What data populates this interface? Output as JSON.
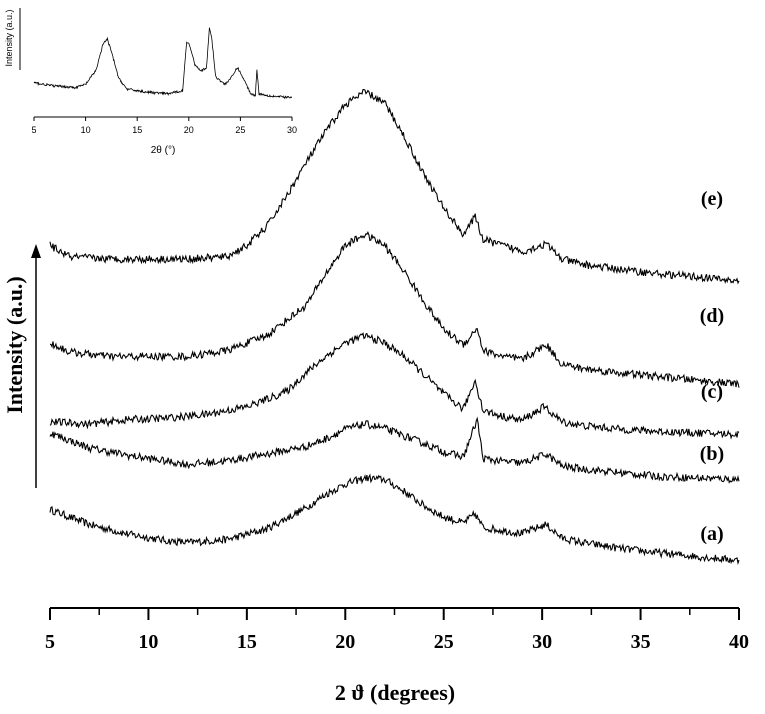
{
  "chart_data": [
    {
      "type": "line",
      "title": "",
      "xlabel": "2 ϑ (degrees)",
      "ylabel": "Intensity (a.u.)",
      "xlim": [
        5,
        40
      ],
      "xticks": [
        5,
        10,
        15,
        20,
        25,
        30,
        35,
        40
      ],
      "y_ticks_shown": false,
      "grid": false,
      "series": [
        {
          "name": "(a)",
          "x": [
            5,
            7,
            9,
            11,
            12,
            14,
            16,
            18,
            19,
            20,
            21,
            22,
            23,
            24,
            25,
            26,
            26.6,
            27,
            28,
            29,
            30.2,
            31,
            32,
            34,
            36,
            38,
            40
          ],
          "y": [
            0.78,
            0.58,
            0.45,
            0.36,
            0.34,
            0.38,
            0.52,
            0.8,
            0.98,
            1.12,
            1.2,
            1.18,
            1.02,
            0.83,
            0.68,
            0.6,
            0.72,
            0.54,
            0.5,
            0.46,
            0.58,
            0.4,
            0.34,
            0.26,
            0.2,
            0.15,
            0.1
          ]
        },
        {
          "name": "(b)",
          "x": [
            5,
            7,
            9,
            11,
            12,
            14,
            16,
            18,
            19,
            20,
            21,
            22,
            23,
            24,
            25,
            26,
            26.7,
            27,
            28,
            29,
            30.2,
            31,
            32,
            34,
            36,
            38,
            40
          ],
          "y": [
            1.8,
            1.6,
            1.5,
            1.42,
            1.38,
            1.43,
            1.52,
            1.62,
            1.72,
            1.85,
            1.92,
            1.86,
            1.76,
            1.66,
            1.55,
            1.48,
            1.98,
            1.46,
            1.42,
            1.4,
            1.52,
            1.36,
            1.32,
            1.27,
            1.22,
            1.2,
            1.18
          ]
        },
        {
          "name": "(c)",
          "x": [
            5,
            7,
            9,
            11,
            13,
            15,
            17,
            18,
            19,
            20,
            21,
            22,
            23,
            24,
            25,
            26,
            26.6,
            27,
            28,
            29,
            30.1,
            31,
            32,
            34,
            36,
            38,
            40
          ],
          "y": [
            1.95,
            1.92,
            1.98,
            2.0,
            2.05,
            2.15,
            2.35,
            2.6,
            2.82,
            3.0,
            3.1,
            3.0,
            2.82,
            2.58,
            2.32,
            2.12,
            2.5,
            2.1,
            2.02,
            1.97,
            2.15,
            1.95,
            1.9,
            1.85,
            1.82,
            1.8,
            1.78
          ]
        },
        {
          "name": "(d)",
          "x": [
            5,
            6,
            8,
            10,
            12,
            14,
            16,
            18,
            19,
            20,
            21,
            22,
            23,
            24,
            25,
            26,
            26.7,
            27,
            28,
            29,
            30.2,
            31,
            32,
            34,
            36,
            38,
            40
          ],
          "y": [
            3.0,
            2.88,
            2.82,
            2.82,
            2.82,
            2.9,
            3.1,
            3.5,
            3.92,
            4.3,
            4.45,
            4.3,
            3.95,
            3.55,
            3.18,
            2.98,
            3.2,
            2.9,
            2.82,
            2.78,
            2.98,
            2.72,
            2.66,
            2.6,
            2.55,
            2.5,
            2.45
          ]
        },
        {
          "name": "(e)",
          "x": [
            5,
            6,
            8,
            10,
            12,
            14,
            15,
            16,
            17,
            18,
            19,
            20,
            21,
            22,
            23,
            24,
            25,
            26,
            26.6,
            27,
            28,
            29,
            30.2,
            31,
            32,
            34,
            36,
            38,
            40
          ],
          "y": [
            4.3,
            4.15,
            4.12,
            4.12,
            4.12,
            4.15,
            4.3,
            4.55,
            4.95,
            5.4,
            5.82,
            6.18,
            6.35,
            6.2,
            5.75,
            5.25,
            4.8,
            4.45,
            4.68,
            4.38,
            4.3,
            4.22,
            4.32,
            4.12,
            4.05,
            3.98,
            3.92,
            3.88,
            3.82
          ]
        }
      ],
      "series_labels": [
        "(e)",
        "(d)",
        "(c)",
        "(b)",
        "(a)"
      ]
    },
    {
      "type": "line",
      "title": "",
      "xlabel": "2θ (°)",
      "ylabel": "Intensity (a.u.)",
      "xlim": [
        5,
        30
      ],
      "xticks": [
        5,
        10,
        15,
        20,
        25,
        30
      ],
      "grid": false,
      "series": [
        {
          "x": [
            5,
            7,
            9,
            10,
            11,
            11.7,
            12.1,
            12.5,
            13.2,
            14,
            16,
            18,
            19.4,
            19.8,
            20.1,
            20.6,
            21.2,
            21.7,
            22.0,
            22.2,
            22.6,
            23.5,
            24.2,
            24.7,
            25.2,
            26,
            26.45,
            26.6,
            26.8,
            28,
            30
          ],
          "y": [
            0.22,
            0.18,
            0.16,
            0.2,
            0.38,
            0.72,
            0.78,
            0.62,
            0.28,
            0.14,
            0.1,
            0.08,
            0.12,
            0.75,
            0.7,
            0.45,
            0.38,
            0.4,
            0.92,
            0.82,
            0.3,
            0.2,
            0.3,
            0.42,
            0.3,
            0.08,
            0.06,
            0.4,
            0.08,
            0.05,
            0.03
          ]
        }
      ]
    }
  ]
}
